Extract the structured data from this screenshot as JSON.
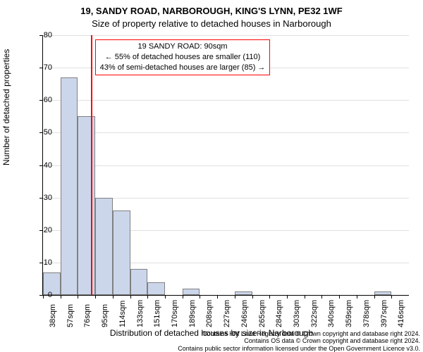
{
  "chart": {
    "type": "bar",
    "title_line1": "19, SANDY ROAD, NARBOROUGH, KING'S LYNN, PE32 1WF",
    "title_line2": "Size of property relative to detached houses in Narborough",
    "ylabel": "Number of detached properties",
    "xlabel": "Distribution of detached houses by size in Narborough",
    "ymax": 80,
    "ytick_step": 10,
    "bar_fill": "#ccd6eb",
    "bar_stroke": "#808080",
    "grid_color": "rgba(0,0,0,0.12)",
    "axis_color": "#000000",
    "background_color": "#ffffff",
    "marker_color": "#ff0000",
    "marker_value": 90,
    "title_fontsize": 13,
    "subtitle_fontsize": 13,
    "axis_label_fontsize": 12,
    "tick_fontsize": 11,
    "info_fontsize": 11,
    "categories": [
      "38sqm",
      "57sqm",
      "76sqm",
      "95sqm",
      "114sqm",
      "133sqm",
      "151sqm",
      "170sqm",
      "189sqm",
      "208sqm",
      "227sqm",
      "246sqm",
      "265sqm",
      "284sqm",
      "303sqm",
      "322sqm",
      "340sqm",
      "359sqm",
      "378sqm",
      "397sqm",
      "416sqm"
    ],
    "values": [
      7,
      67,
      55,
      30,
      26,
      8,
      4,
      0,
      2,
      0,
      0,
      1,
      0,
      0,
      0,
      0,
      0,
      0,
      0,
      1,
      0
    ],
    "info_box": {
      "line1": "19 SANDY ROAD: 90sqm",
      "line2": "← 55% of detached houses are smaller (110)",
      "line3": "43% of semi-detached houses are larger (85) →"
    },
    "caption_line1": "Contains HM Land Registry data © Crown copyright and database right 2024.",
    "caption_line2": "Contains OS data © Crown copyright and database right 2024.",
    "caption_line3": "Contains public sector information licensed under the Open Government Licence v3.0."
  }
}
